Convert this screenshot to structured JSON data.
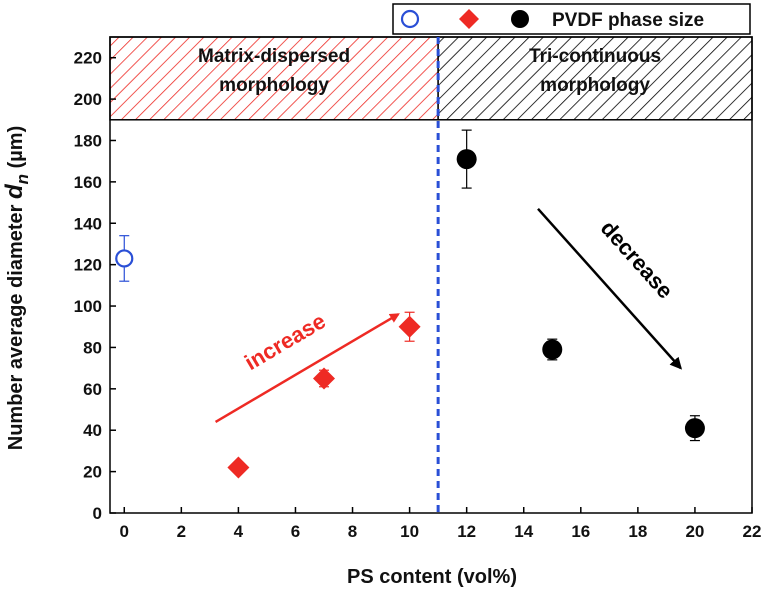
{
  "chart_data": {
    "type": "scatter",
    "xlabel": "PS content (vol%)",
    "ylabel_main": "Number average diameter ",
    "ylabel_symbol": "d",
    "ylabel_subscript": "n",
    "ylabel_unit": " (µm)",
    "xlim": [
      -0.5,
      22
    ],
    "ylim": [
      0,
      230
    ],
    "xticks": [
      0,
      2,
      4,
      6,
      8,
      10,
      12,
      14,
      16,
      18,
      20,
      22
    ],
    "yticks": [
      0,
      20,
      40,
      60,
      80,
      100,
      120,
      140,
      160,
      180,
      200,
      220
    ],
    "legend": {
      "label": "PVDF phase size",
      "position": "top-right"
    },
    "series": [
      {
        "marker": "open-circle",
        "color": "#2a4fd6",
        "points": [
          {
            "x": 0,
            "y": 123,
            "err": 11
          }
        ]
      },
      {
        "marker": "diamond",
        "color": "#ee2a24",
        "points": [
          {
            "x": 4,
            "y": 22,
            "err": 0
          },
          {
            "x": 7,
            "y": 65,
            "err": 4
          },
          {
            "x": 10,
            "y": 90,
            "err": 7
          }
        ]
      },
      {
        "marker": "filled-circle",
        "color": "#000000",
        "points": [
          {
            "x": 12,
            "y": 171,
            "err": 14
          },
          {
            "x": 15,
            "y": 79,
            "err": 5
          },
          {
            "x": 20,
            "y": 41,
            "err": 6
          }
        ]
      }
    ],
    "regions": [
      {
        "label_line1": "Matrix-dispersed",
        "label_line2": "morphology",
        "x_from": -0.5,
        "x_to": 11,
        "y_from": 190,
        "y_to": 230,
        "color": "#ee2a24"
      },
      {
        "label_line1": "Tri-continuous",
        "label_line2": "morphology",
        "x_from": 11,
        "x_to": 22,
        "y_from": 190,
        "y_to": 230,
        "color": "#000000"
      }
    ],
    "divider": {
      "x": 11,
      "color": "#2a4fd6",
      "style": "dashed"
    },
    "annotations": [
      {
        "text": "increase",
        "color": "#ee2a24",
        "arrow_from": [
          3.2,
          44
        ],
        "arrow_to": [
          9.6,
          96
        ]
      },
      {
        "text": "decrease",
        "color": "#000000",
        "arrow_from": [
          14.5,
          147
        ],
        "arrow_to": [
          19.5,
          70
        ]
      }
    ]
  }
}
